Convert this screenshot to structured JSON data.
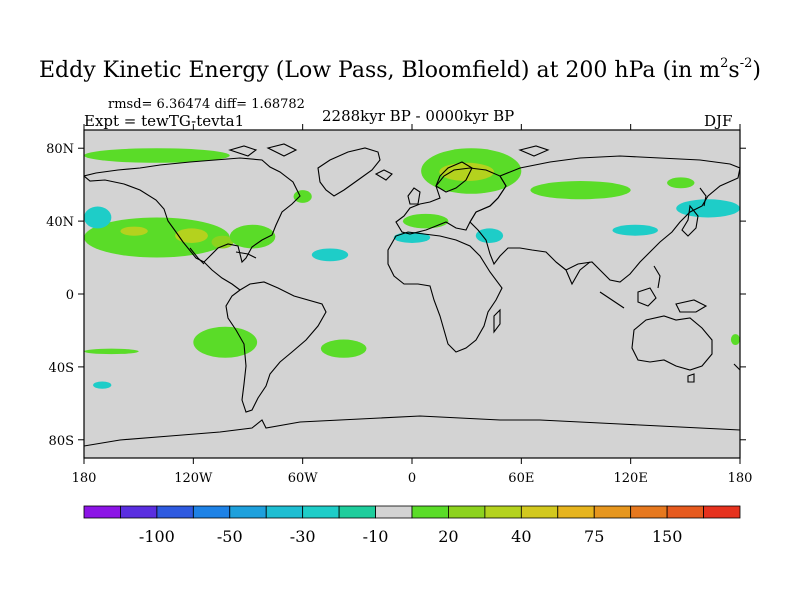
{
  "title": {
    "main": "Eddy Kinetic Energy (Low Pass, Bloomfield) at 200 hPa (in m",
    "sup1": "2",
    "mid": "s",
    "sup2": "-2",
    "end": ")"
  },
  "stats": "rmsd= 6.36474 diff= 1.68782",
  "left_label": "Expt = tewTG-tevta1",
  "center_label": "2288kyr BP - 0000kyr BP",
  "right_label": "DJF",
  "colors": {
    "ocean_background": "#d3d3d3",
    "coastline": "#000000"
  },
  "map": {
    "lon_range": [
      -180,
      180
    ],
    "lat_range": [
      -90,
      90
    ],
    "lon_ticks": [
      {
        "value": -180,
        "label": "180"
      },
      {
        "value": -120,
        "label": "120W"
      },
      {
        "value": -60,
        "label": "60W"
      },
      {
        "value": 0,
        "label": "0"
      },
      {
        "value": 60,
        "label": "60E"
      },
      {
        "value": 120,
        "label": "120E"
      },
      {
        "value": 180,
        "label": "180"
      }
    ],
    "lat_ticks": [
      {
        "value": 80,
        "label": "80N"
      },
      {
        "value": 40,
        "label": "40N"
      },
      {
        "value": 0,
        "label": "0"
      },
      {
        "value": -40,
        "label": "40S"
      },
      {
        "value": -80,
        "label": "80S"
      }
    ],
    "regions": [
      {
        "name": "north-pacific-band",
        "level": 20,
        "lon": [
          -180,
          -100
        ],
        "lat": [
          20,
          42
        ]
      },
      {
        "name": "north-pacific-core",
        "level": 40,
        "lon": [
          -160,
          -145
        ],
        "lat": [
          32,
          37
        ]
      },
      {
        "name": "north-america-core",
        "level": 40,
        "lon": [
          -130,
          -112
        ],
        "lat": [
          28,
          36
        ]
      },
      {
        "name": "east-pacific-core",
        "level": 30,
        "lon": [
          -110,
          -98
        ],
        "lat": [
          25,
          32
        ]
      },
      {
        "name": "gulf-band",
        "level": 20,
        "lon": [
          -100,
          -75
        ],
        "lat": [
          25,
          38
        ]
      },
      {
        "name": "arctic-canada",
        "level": 20,
        "lon": [
          -180,
          -100
        ],
        "lat": [
          72,
          80
        ]
      },
      {
        "name": "labrador",
        "level": 20,
        "lon": [
          -65,
          -55
        ],
        "lat": [
          50,
          57
        ]
      },
      {
        "name": "atlantic-neg",
        "level": -10,
        "lon": [
          -55,
          -35
        ],
        "lat": [
          18,
          25
        ]
      },
      {
        "name": "north-europe",
        "level": 20,
        "lon": [
          5,
          60
        ],
        "lat": [
          55,
          80
        ]
      },
      {
        "name": "scandinavia-core",
        "level": 40,
        "lon": [
          15,
          45
        ],
        "lat": [
          62,
          72
        ]
      },
      {
        "name": "siberia-band",
        "level": 20,
        "lon": [
          65,
          120
        ],
        "lat": [
          52,
          62
        ]
      },
      {
        "name": "mediterranean",
        "level": 20,
        "lon": [
          -5,
          20
        ],
        "lat": [
          36,
          44
        ]
      },
      {
        "name": "north-africa-neg",
        "level": -10,
        "lon": [
          -10,
          10
        ],
        "lat": [
          28,
          34
        ]
      },
      {
        "name": "middle-east-neg",
        "level": -10,
        "lon": [
          35,
          50
        ],
        "lat": [
          28,
          36
        ]
      },
      {
        "name": "pacific-west-neg",
        "level": -10,
        "lon": [
          -180,
          -165
        ],
        "lat": [
          36,
          48
        ]
      },
      {
        "name": "japan-neg",
        "level": -10,
        "lon": [
          145,
          180
        ],
        "lat": [
          42,
          52
        ]
      },
      {
        "name": "china-neg",
        "level": -10,
        "lon": [
          110,
          135
        ],
        "lat": [
          32,
          38
        ]
      },
      {
        "name": "japan-pos",
        "level": 20,
        "lon": [
          140,
          155
        ],
        "lat": [
          58,
          64
        ]
      },
      {
        "name": "south-pacific",
        "level": 20,
        "lon": [
          -120,
          -85
        ],
        "lat": [
          -35,
          -18
        ]
      },
      {
        "name": "south-america-east",
        "level": 20,
        "lon": [
          -50,
          -25
        ],
        "lat": [
          -35,
          -25
        ]
      },
      {
        "name": "south-pacific-west",
        "level": 20,
        "lon": [
          -180,
          -150
        ],
        "lat": [
          -33,
          -30
        ]
      },
      {
        "name": "south-indian",
        "level": -10,
        "lon": [
          -175,
          -165
        ],
        "lat": [
          -52,
          -48
        ]
      },
      {
        "name": "south-aus-east",
        "level": 20,
        "lon": [
          175,
          180
        ],
        "lat": [
          -28,
          -22
        ]
      }
    ],
    "coastlines_label": "continent-outlines"
  },
  "colorbar": {
    "colors": [
      "#8c14e6",
      "#5a2ee0",
      "#2e5ae0",
      "#1e82e6",
      "#1ea0dc",
      "#1ebed2",
      "#1ecdc8",
      "#1ecd9c",
      "#d3d3d3",
      "#5adc28",
      "#8cd21e",
      "#b4d21e",
      "#d2c81e",
      "#e6b41e",
      "#e6961e",
      "#e6781e",
      "#e65a1e",
      "#e6321e"
    ],
    "labels": [
      {
        "after_box": 1,
        "text": "-100"
      },
      {
        "after_box": 3,
        "text": "-50"
      },
      {
        "after_box": 5,
        "text": "-30"
      },
      {
        "after_box": 7,
        "text": "-10"
      },
      {
        "after_box": 9,
        "text": "20"
      },
      {
        "after_box": 11,
        "text": "40"
      },
      {
        "after_box": 13,
        "text": "75"
      },
      {
        "after_box": 15,
        "text": "150"
      }
    ]
  }
}
